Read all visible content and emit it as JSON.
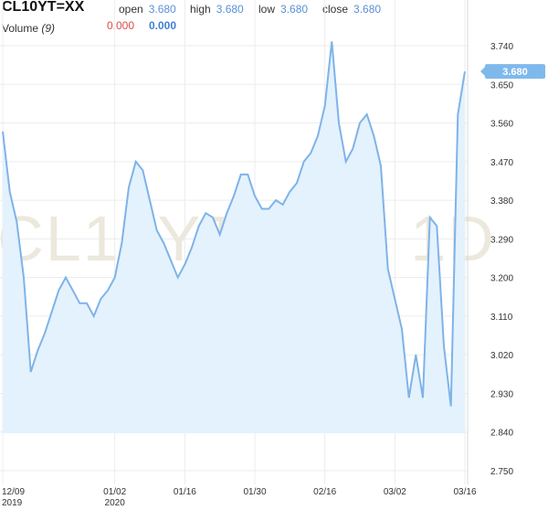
{
  "header": {
    "symbol": "CL10YT=XX",
    "open_label": "open",
    "open_value": "3.680",
    "high_label": "high",
    "high_value": "3.680",
    "low_label": "low",
    "low_value": "3.680",
    "close_label": "close",
    "close_value": "3.680",
    "volume_label": "Volume",
    "volume_period": "(9)",
    "volume_value_1": "0.000",
    "volume_value_2": "0.000"
  },
  "watermark": "CL10YT=XX, 1D",
  "last_price_label": "3.680",
  "colors": {
    "line": "#7fb3e8",
    "fill": "#e3f2fd",
    "badge": "#7fb9ec",
    "grid": "#ececec"
  },
  "chart_data": {
    "type": "area",
    "title": "",
    "xlabel": "",
    "ylabel": "",
    "ylim": [
      2.72,
      3.8
    ],
    "yticks": [
      "3.740",
      "3.650",
      "3.560",
      "3.470",
      "3.380",
      "3.290",
      "3.200",
      "3.110",
      "3.020",
      "2.930",
      "2.840",
      "2.750"
    ],
    "xticks": [
      {
        "label": "12/09",
        "sublabel": "2019",
        "index": 0
      },
      {
        "label": "01/02",
        "sublabel": "2020",
        "index": 16
      },
      {
        "label": "01/16",
        "sublabel": "",
        "index": 26
      },
      {
        "label": "01/30",
        "sublabel": "",
        "index": 36
      },
      {
        "label": "02/16",
        "sublabel": "",
        "index": 46
      },
      {
        "label": "03/02",
        "sublabel": "",
        "index": 56
      },
      {
        "label": "03/16",
        "sublabel": "",
        "index": 66
      }
    ],
    "series": [
      {
        "values": [
          3.54,
          3.4,
          3.33,
          3.2,
          2.98,
          3.03,
          3.07,
          3.12,
          3.17,
          3.2,
          3.17,
          3.14,
          3.14,
          3.11,
          3.15,
          3.17,
          3.2,
          3.28,
          3.41,
          3.47,
          3.45,
          3.38,
          3.31,
          3.28,
          3.24,
          3.2,
          3.23,
          3.27,
          3.32,
          3.35,
          3.34,
          3.3,
          3.35,
          3.39,
          3.44,
          3.44,
          3.39,
          3.36,
          3.36,
          3.38,
          3.37,
          3.4,
          3.42,
          3.47,
          3.49,
          3.53,
          3.6,
          3.75,
          3.56,
          3.47,
          3.5,
          3.56,
          3.58,
          3.53,
          3.46,
          3.22,
          3.15,
          3.08,
          2.92,
          3.02,
          2.92,
          3.34,
          3.32,
          3.04,
          2.9,
          3.58,
          3.68
        ]
      }
    ]
  }
}
